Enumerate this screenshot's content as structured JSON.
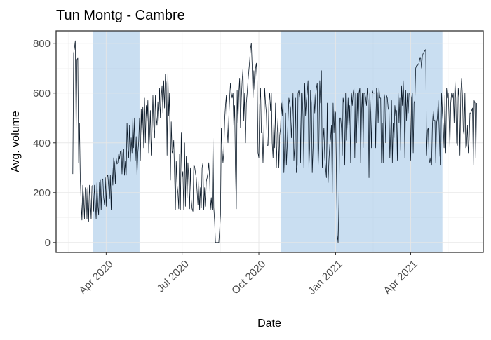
{
  "chart_data": {
    "type": "line",
    "title": "Tun Montg - Cambre",
    "xlabel": "Date",
    "ylabel": "Avg. volume",
    "x_tick_labels": [
      "Apr 2020",
      "Jul 2020",
      "Oct 2020",
      "Jan 2021",
      "Apr 2021"
    ],
    "x_ticks": [
      "2020-04-01",
      "2020-07-01",
      "2020-10-01",
      "2021-01-01",
      "2021-04-01"
    ],
    "y_ticks": [
      0,
      200,
      400,
      600,
      800
    ],
    "xlim": [
      "2020-02-01",
      "2021-06-27"
    ],
    "ylim": [
      -40,
      850
    ],
    "grid": true,
    "colors": {
      "line": "#0d1b2a",
      "shade": "#9dc3e6",
      "grid": "#e6e6e6",
      "border": "#333333"
    },
    "shaded_periods": [
      {
        "start": "2020-03-16",
        "end": "2020-05-11"
      },
      {
        "start": "2020-10-27",
        "end": "2021-05-09"
      }
    ],
    "series": [
      {
        "x_start": "2020-02-21",
        "values": [
          275,
          760,
          780,
          810,
          440,
          735,
          740,
          320,
          480,
          255,
          160,
          90,
          230,
          180,
          95,
          220,
          215,
          95,
          220,
          85,
          230,
          170,
          95,
          225,
          230,
          125,
          230,
          160,
          95,
          240,
          150,
          110,
          240,
          250,
          130,
          250,
          255,
          180,
          150,
          260,
          145,
          265,
          270,
          225,
          175,
          270,
          130,
          300,
          230,
          340,
          320,
          235,
          340,
          315,
          320,
          355,
          335,
          365,
          370,
          275,
          360,
          375,
          270,
          325,
          270,
          480,
          380,
          340,
          470,
          325,
          420,
          360,
          505,
          380,
          500,
          330,
          425,
          270,
          360,
          405,
          500,
          330,
          535,
          420,
          545,
          380,
          580,
          400,
          550,
          485,
          570,
          360,
          425,
          530,
          350,
          455,
          590,
          470,
          420,
          590,
          500,
          470,
          565,
          490,
          620,
          500,
          580,
          630,
          520,
          650,
          540,
          675,
          640,
          350,
          680,
          510,
          600,
          250,
          485,
          360,
          370,
          410,
          270,
          130,
          325,
          230,
          200,
          135,
          355,
          130,
          440,
          260,
          285,
          130,
          400,
          145,
          345,
          180,
          320,
          250,
          135,
          300,
          170,
          135,
          125,
          310,
          305,
          280,
          260,
          205,
          150,
          250,
          130,
          220,
          140,
          300,
          320,
          130,
          220,
          145,
          245,
          260,
          280,
          320,
          260,
          130,
          180,
          130,
          420,
          140,
          85,
          0,
          0,
          0,
          0,
          0,
          50,
          110,
          460,
          370,
          320,
          360,
          490,
          550,
          590,
          460,
          400,
          500,
          580,
          640,
          600,
          580,
          600,
          470,
          550,
          290,
          135,
          610,
          480,
          600,
          660,
          460,
          580,
          650,
          700,
          490,
          600,
          400,
          560,
          600,
          650,
          690,
          730,
          780,
          800,
          705,
          580,
          690,
          615,
          700,
          720,
          650,
          360,
          340,
          550,
          620,
          440,
          440,
          320,
          440,
          620,
          560,
          520,
          390,
          390,
          560,
          600,
          530,
          600,
          400,
          340,
          490,
          380,
          560,
          300,
          440,
          500,
          300,
          430,
          460,
          560,
          510,
          580,
          280,
          380,
          520,
          310,
          390,
          490,
          580,
          560,
          540,
          420,
          500,
          600,
          330,
          380,
          580,
          280,
          310,
          600,
          610,
          580,
          320,
          600,
          600,
          500,
          300,
          640,
          510,
          570,
          600,
          650,
          300,
          390,
          610,
          560,
          280,
          380,
          600,
          520,
          590,
          620,
          640,
          300,
          400,
          650,
          560,
          690,
          300,
          410,
          460,
          340,
          300,
          260,
          560,
          240,
          330,
          390,
          420,
          470,
          200,
          560,
          440,
          530,
          520,
          280,
          30,
          0,
          160,
          500,
          500,
          460,
          350,
          580,
          560,
          310,
          600,
          410,
          480,
          580,
          460,
          550,
          320,
          600,
          550,
          600,
          620,
          340,
          600,
          400,
          600,
          450,
          600,
          620,
          320,
          520,
          600,
          380,
          600,
          600,
          580,
          550,
          620,
          570,
          260,
          600,
          520,
          380,
          610,
          600,
          600,
          600,
          380,
          620,
          600,
          480,
          620,
          580,
          580,
          320,
          480,
          320,
          600,
          580,
          400,
          590,
          580,
          540,
          530,
          340,
          440,
          570,
          320,
          480,
          420,
          550,
          510,
          530,
          330,
          600,
          480,
          580,
          370,
          630,
          550,
          650,
          560,
          340,
          610,
          490,
          600,
          520,
          600,
          600,
          330,
          580,
          600,
          360,
          560,
          570,
          700,
          710,
          710,
          715,
          720,
          740,
          740,
          700,
          750,
          760,
          765,
          770,
          775,
          350,
          450,
          460,
          340,
          320,
          340,
          310,
          470,
          530,
          490,
          490,
          320,
          480,
          500,
          570,
          470,
          350,
          310,
          600,
          520,
          470,
          380,
          590,
          360,
          620,
          580,
          600,
          500,
          380,
          560,
          600,
          580,
          600,
          480,
          650,
          580,
          400,
          390,
          620,
          580,
          350,
          600,
          660,
          590,
          450,
          430,
          600,
          380,
          390,
          470,
          360,
          410,
          520,
          520,
          530,
          540,
          310,
          570,
          560,
          340,
          560
        ]
      }
    ]
  }
}
